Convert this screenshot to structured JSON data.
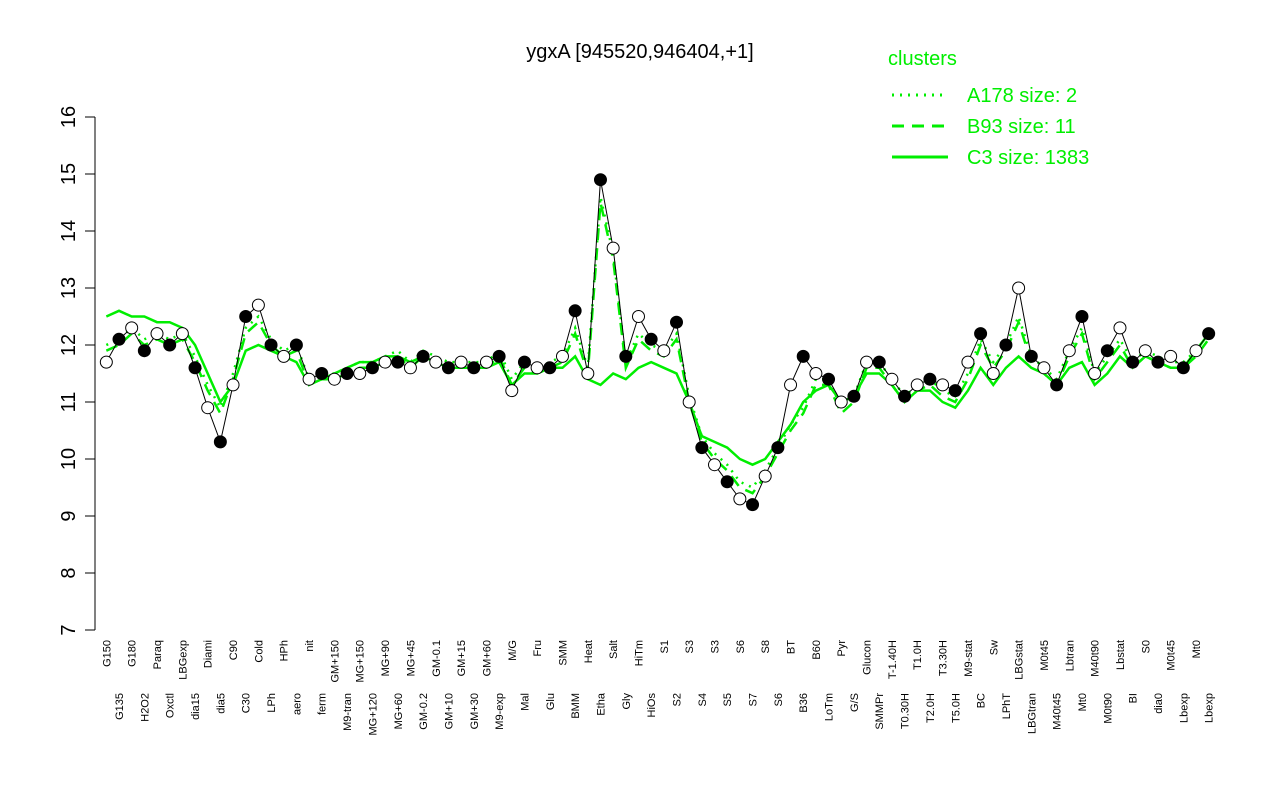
{
  "chart_data": {
    "type": "line",
    "title": "ygxA [945520,946404,+1]",
    "categories": [
      "G150",
      "G135",
      "G180",
      "H2O2",
      "Paraq",
      "Oxctl",
      "LBGexp",
      "dia15",
      "Diami",
      "dia5",
      "C90",
      "C30",
      "Cold",
      "LPh",
      "HPh",
      "aero",
      "nit",
      "ferm",
      "GM+150",
      "M9-tran",
      "MG+150",
      "MG+120",
      "MG+90",
      "MG+60",
      "MG+45",
      "GM-0.2",
      "GM-0.1",
      "GM+10",
      "GM+15",
      "GM+30",
      "GM+60",
      "M9-exp",
      "M/G",
      "Mal",
      "Fru",
      "Glu",
      "SMM",
      "BMM",
      "Heat",
      "Etha",
      "Salt",
      "Gly",
      "HiTm",
      "HiOs",
      "S1",
      "S2",
      "S3",
      "S4",
      "S3",
      "S5",
      "S6",
      "S7",
      "S8",
      "S6",
      "BT",
      "B36",
      "B60",
      "LoTm",
      "Pyr",
      "G/S",
      "Glucon",
      "SMMPr",
      "T-1.40H",
      "T0.30H",
      "T1.0H",
      "T2.0H",
      "T3.30H",
      "T5.0H",
      "M9-stat",
      "BC",
      "Sw",
      "LPhT",
      "LBGstat",
      "LBGtran",
      "M0t45",
      "M40t45",
      "Lbtran",
      "Mt0",
      "M40t90",
      "M0t90",
      "Lbstat",
      "BI",
      "S0",
      "dia0",
      "M0t45",
      "Lbexp",
      "Mt0",
      "Lbexp"
    ],
    "values": [
      11.7,
      12.1,
      12.3,
      11.9,
      12.2,
      12.0,
      12.2,
      11.6,
      10.9,
      10.3,
      11.3,
      12.5,
      12.7,
      12.0,
      11.8,
      12.0,
      11.4,
      11.5,
      11.4,
      11.5,
      11.5,
      11.6,
      11.7,
      11.7,
      11.6,
      11.8,
      11.7,
      11.6,
      11.7,
      11.6,
      11.7,
      11.8,
      11.2,
      11.7,
      11.6,
      11.6,
      11.8,
      12.6,
      11.5,
      14.9,
      13.7,
      11.8,
      12.5,
      12.1,
      11.9,
      12.4,
      11.0,
      10.2,
      9.9,
      9.6,
      9.3,
      9.2,
      9.7,
      10.2,
      11.3,
      11.8,
      11.5,
      11.4,
      11.0,
      11.1,
      11.7,
      11.7,
      11.4,
      11.1,
      11.3,
      11.4,
      11.3,
      11.2,
      11.7,
      12.2,
      11.5,
      12.0,
      13.0,
      11.8,
      11.6,
      11.3,
      11.9,
      12.5,
      11.5,
      11.9,
      12.3,
      11.7,
      11.9,
      11.7,
      11.8,
      11.6,
      11.9,
      12.2
    ],
    "series": [
      {
        "name": "A178 size: 2",
        "color": "#00ee00",
        "linestyle": "dotted",
        "values": [
          12.0,
          12.1,
          12.3,
          12.1,
          12.2,
          12.1,
          12.2,
          11.8,
          11.3,
          10.9,
          11.5,
          12.3,
          12.5,
          12.1,
          11.9,
          12.0,
          11.4,
          11.5,
          11.5,
          11.6,
          11.7,
          11.7,
          11.8,
          11.9,
          11.7,
          11.9,
          11.8,
          11.7,
          11.7,
          11.7,
          11.7,
          11.9,
          11.4,
          11.7,
          11.6,
          11.7,
          11.8,
          12.3,
          11.6,
          14.6,
          13.6,
          11.7,
          12.2,
          12.0,
          11.9,
          12.2,
          11.1,
          10.4,
          10.1,
          9.9,
          9.6,
          9.5,
          9.8,
          10.2,
          10.6,
          10.9,
          11.4,
          11.4,
          10.9,
          11.1,
          11.7,
          11.7,
          11.4,
          11.1,
          11.3,
          11.4,
          11.2,
          11.1,
          11.5,
          12.1,
          11.7,
          12.0,
          12.5,
          11.8,
          11.6,
          11.4,
          11.9,
          12.3,
          11.5,
          11.8,
          12.1,
          11.7,
          11.9,
          11.8,
          11.7,
          11.7,
          11.9,
          12.2
        ]
      },
      {
        "name": "B93 size: 11",
        "color": "#00ee00",
        "linestyle": "dashed",
        "values": [
          11.9,
          12.0,
          12.2,
          12.0,
          12.1,
          12.0,
          12.1,
          11.7,
          11.2,
          10.8,
          11.4,
          12.2,
          12.4,
          12.0,
          11.8,
          11.9,
          11.3,
          11.4,
          11.4,
          11.5,
          11.6,
          11.6,
          11.7,
          11.8,
          11.6,
          11.8,
          11.7,
          11.6,
          11.6,
          11.6,
          11.6,
          11.8,
          11.3,
          11.6,
          11.5,
          11.6,
          11.7,
          12.2,
          11.5,
          14.5,
          13.5,
          11.6,
          12.1,
          11.9,
          11.8,
          12.1,
          11.0,
          10.3,
          10.0,
          9.8,
          9.5,
          9.4,
          9.7,
          10.1,
          10.5,
          10.8,
          11.3,
          11.3,
          10.8,
          11.0,
          11.6,
          11.6,
          11.3,
          11.0,
          11.2,
          11.3,
          11.1,
          11.0,
          11.4,
          12.0,
          11.6,
          11.9,
          12.4,
          11.7,
          11.5,
          11.3,
          11.8,
          12.2,
          11.4,
          11.7,
          12.0,
          11.6,
          11.8,
          11.7,
          11.6,
          11.6,
          11.8,
          12.1
        ]
      },
      {
        "name": "C3 size: 1383",
        "color": "#00ee00",
        "linestyle": "solid",
        "values": [
          12.5,
          12.6,
          12.5,
          12.5,
          12.4,
          12.4,
          12.3,
          12.0,
          11.5,
          11.0,
          11.3,
          11.9,
          12.0,
          11.9,
          11.8,
          11.7,
          11.3,
          11.4,
          11.5,
          11.6,
          11.7,
          11.7,
          11.8,
          11.8,
          11.7,
          11.8,
          11.7,
          11.6,
          11.6,
          11.6,
          11.6,
          11.7,
          11.3,
          11.5,
          11.5,
          11.6,
          11.6,
          11.8,
          11.4,
          11.3,
          11.5,
          11.4,
          11.6,
          11.7,
          11.6,
          11.5,
          11.0,
          10.4,
          10.3,
          10.2,
          10.0,
          9.9,
          10.0,
          10.3,
          10.6,
          11.0,
          11.2,
          11.3,
          11.0,
          11.1,
          11.5,
          11.5,
          11.3,
          11.0,
          11.2,
          11.2,
          11.0,
          10.9,
          11.2,
          11.6,
          11.3,
          11.6,
          11.8,
          11.6,
          11.5,
          11.3,
          11.6,
          11.7,
          11.3,
          11.5,
          11.8,
          11.6,
          11.8,
          11.7,
          11.6,
          11.6,
          11.9,
          12.2
        ]
      }
    ],
    "legend_title": "clusters",
    "legend": "top-right",
    "ylim": [
      7,
      16
    ],
    "yticks": [
      7,
      8,
      9,
      10,
      11,
      12,
      13,
      14,
      15,
      16
    ]
  }
}
